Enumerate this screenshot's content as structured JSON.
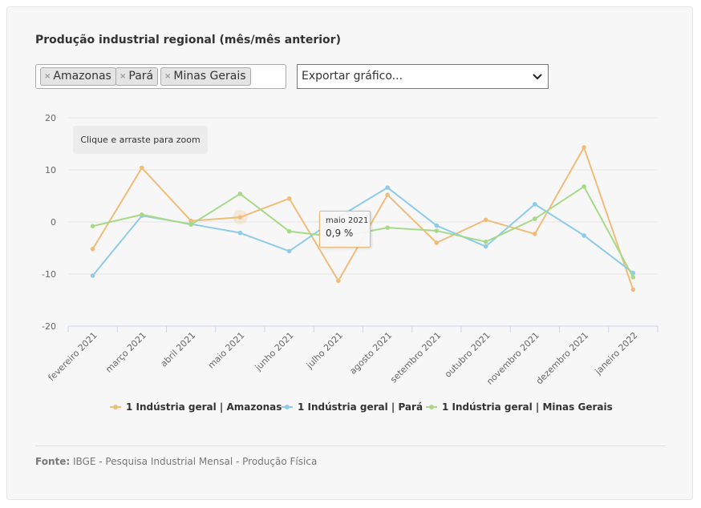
{
  "title": "Produção industrial regional (mês/mês anterior)",
  "filter": {
    "chips": [
      {
        "label": "Amazonas"
      },
      {
        "label": "Pará"
      },
      {
        "label": "Minas Gerais"
      }
    ],
    "remove_glyph": "×"
  },
  "export_select": {
    "selected": "Exportar gráfico..."
  },
  "zoom_hint": "Clique e arraste para zoom",
  "tooltip": {
    "category": "maio 2021",
    "value": "0,9 %"
  },
  "chart_data": {
    "type": "line",
    "categories": [
      "fevereiro 2021",
      "março 2021",
      "abril 2021",
      "maio 2021",
      "junho 2021",
      "julho 2021",
      "agosto 2021",
      "setembro 2021",
      "outubro 2021",
      "novembro 2021",
      "dezembro 2021",
      "janeiro 2022"
    ],
    "ylim": [
      -20,
      20
    ],
    "yticks": [
      20,
      10,
      0,
      -10,
      -20
    ],
    "grid": true,
    "legend_position": "bottom",
    "series": [
      {
        "name": "1 Indústria geral | Amazonas",
        "color": "#f0bc7a",
        "values": [
          -5.2,
          10.4,
          0.2,
          0.9,
          4.5,
          -11.3,
          5.2,
          -4.0,
          0.4,
          -2.3,
          14.3,
          -13.0
        ]
      },
      {
        "name": "1 Indústria geral | Pará",
        "color": "#8ecbe8",
        "values": [
          -10.3,
          1.2,
          -0.4,
          -2.1,
          -5.6,
          0.9,
          6.6,
          -0.7,
          -4.7,
          3.4,
          -2.6,
          -9.8
        ]
      },
      {
        "name": "1 Indústria geral | Minas Gerais",
        "color": "#a8d98a",
        "values": [
          -0.8,
          1.4,
          -0.5,
          5.4,
          -1.8,
          -2.9,
          -1.1,
          -1.7,
          -3.8,
          0.6,
          6.8,
          -10.6
        ]
      }
    ],
    "highlight": {
      "series": 0,
      "index": 3
    }
  },
  "source": {
    "label": "Fonte:",
    "text": "IBGE - Pesquisa Industrial Mensal - Produção Física"
  }
}
